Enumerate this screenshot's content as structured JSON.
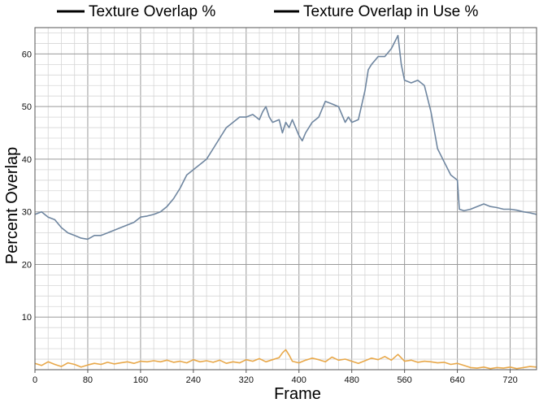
{
  "chart_data": {
    "type": "line",
    "xlabel": "Frame",
    "ylabel": "Percent Overlap",
    "xlim": [
      0,
      760
    ],
    "ylim": [
      0,
      65
    ],
    "x_ticks": [
      0,
      80,
      160,
      240,
      320,
      400,
      480,
      560,
      640,
      720
    ],
    "y_ticks": [
      10,
      20,
      30,
      40,
      50,
      60
    ],
    "x_minor_step": 20,
    "y_minor_step": 2,
    "grid": true,
    "legend_position": "top",
    "series": [
      {
        "name": "Texture Overlap %",
        "legend_swatch_color": "#000000",
        "color": "#6f86a0",
        "x": [
          0,
          10,
          20,
          30,
          40,
          50,
          60,
          70,
          80,
          90,
          100,
          110,
          120,
          130,
          140,
          150,
          160,
          170,
          180,
          190,
          200,
          210,
          220,
          230,
          240,
          250,
          260,
          270,
          280,
          290,
          300,
          310,
          320,
          330,
          340,
          345,
          350,
          355,
          360,
          370,
          375,
          380,
          385,
          390,
          400,
          405,
          410,
          420,
          430,
          440,
          450,
          460,
          470,
          475,
          480,
          490,
          500,
          505,
          510,
          520,
          530,
          540,
          550,
          555,
          560,
          570,
          580,
          590,
          600,
          610,
          620,
          630,
          640,
          643,
          650,
          660,
          670,
          680,
          690,
          700,
          710,
          720,
          730,
          740,
          750,
          760
        ],
        "values": [
          29.5,
          30,
          29,
          28.5,
          27,
          26,
          25.5,
          25,
          24.8,
          25.5,
          25.5,
          26,
          26.5,
          27,
          27.5,
          28,
          29,
          29.2,
          29.5,
          30,
          31,
          32.5,
          34.5,
          37,
          38,
          39,
          40,
          42,
          44,
          46,
          47,
          48,
          48,
          48.5,
          47.5,
          49,
          50,
          48,
          47,
          47.5,
          45,
          47,
          46,
          47.5,
          44.5,
          43.5,
          45,
          47,
          48,
          51,
          50.5,
          50,
          47,
          48,
          47,
          47.5,
          53,
          57,
          58,
          59.5,
          59.5,
          61,
          63.5,
          58,
          55,
          54.5,
          55,
          54,
          49,
          42,
          39.5,
          37,
          36,
          30.5,
          30.2,
          30.5,
          31,
          31.5,
          31,
          30.8,
          30.5,
          30.5,
          30.3,
          30,
          29.8,
          29.5
        ]
      },
      {
        "name": "Texture Overlap in Use %",
        "legend_swatch_color": "#000000",
        "color": "#e8a84a",
        "x": [
          0,
          10,
          20,
          30,
          40,
          50,
          60,
          70,
          80,
          90,
          100,
          110,
          120,
          130,
          140,
          150,
          160,
          170,
          180,
          190,
          200,
          210,
          220,
          230,
          240,
          250,
          260,
          270,
          280,
          290,
          300,
          310,
          320,
          330,
          340,
          350,
          360,
          370,
          375,
          380,
          385,
          390,
          400,
          410,
          420,
          430,
          440,
          450,
          460,
          470,
          480,
          490,
          500,
          510,
          520,
          530,
          540,
          550,
          560,
          570,
          580,
          590,
          600,
          610,
          620,
          630,
          640,
          650,
          660,
          670,
          680,
          690,
          700,
          710,
          720,
          730,
          740,
          750,
          760
        ],
        "values": [
          1.2,
          0.8,
          1.5,
          1.0,
          0.6,
          1.3,
          1.0,
          0.5,
          0.9,
          1.2,
          1.0,
          1.4,
          1.1,
          1.3,
          1.5,
          1.2,
          1.6,
          1.5,
          1.7,
          1.5,
          1.8,
          1.4,
          1.6,
          1.3,
          1.9,
          1.5,
          1.7,
          1.4,
          1.8,
          1.2,
          1.5,
          1.3,
          1.9,
          1.6,
          2.1,
          1.5,
          1.9,
          2.3,
          3.2,
          3.8,
          2.8,
          1.6,
          1.3,
          1.8,
          2.2,
          1.9,
          1.5,
          2.4,
          1.8,
          2.0,
          1.6,
          1.2,
          1.7,
          2.2,
          1.9,
          2.5,
          1.8,
          2.9,
          1.6,
          1.8,
          1.4,
          1.6,
          1.5,
          1.3,
          1.4,
          1.0,
          1.2,
          0.8,
          0.4,
          0.3,
          0.5,
          0.2,
          0.4,
          0.3,
          0.5,
          0.2,
          0.4,
          0.6,
          0.5
        ]
      }
    ]
  }
}
